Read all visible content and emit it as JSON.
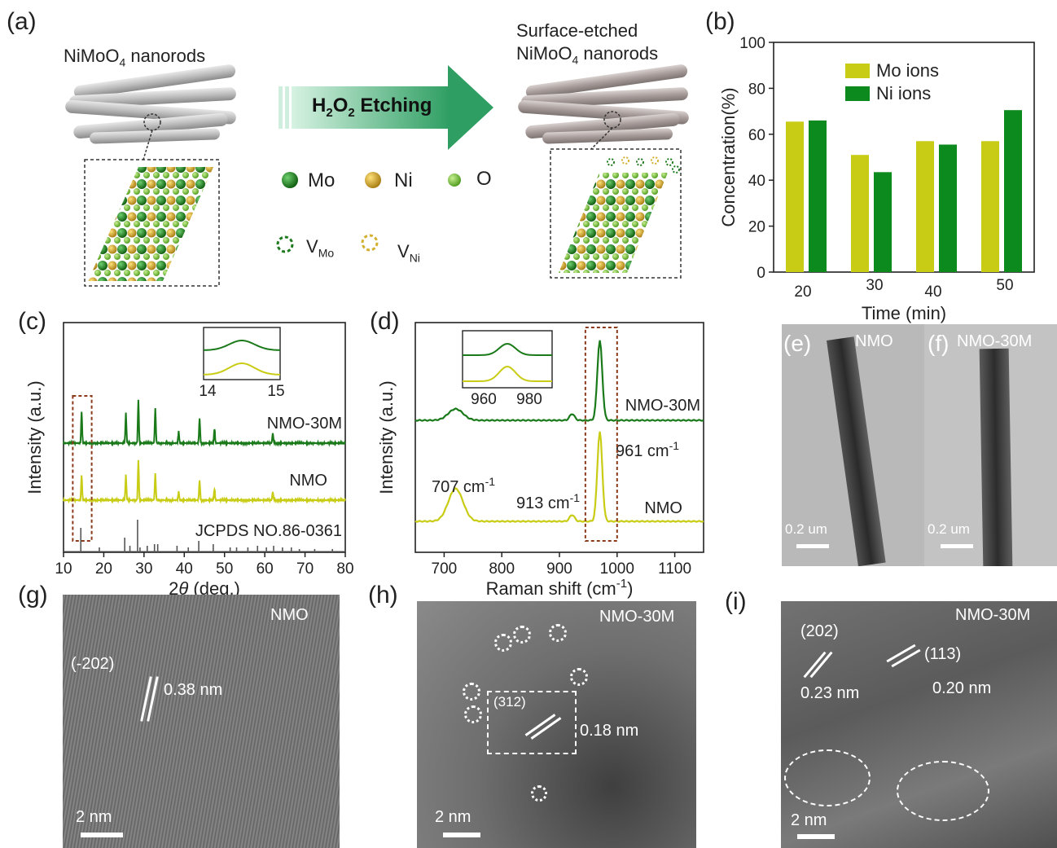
{
  "panels": {
    "a": "(a)",
    "b": "(b)",
    "c": "(c)",
    "d": "(d)",
    "e": "(e)",
    "f": "(f)",
    "g": "(g)",
    "h": "(h)",
    "i": "(i)"
  },
  "schematic": {
    "left_title": "NiMoO",
    "left_sub": "4",
    "left_suffix": " nanorods",
    "right_title_line1": "Surface-etched",
    "right_title_line2": "NiMoO",
    "right_sub": "4",
    "right_suffix": " nanorods",
    "arrow_label_h": "H",
    "arrow_sub1": "2",
    "arrow_o": "O",
    "arrow_sub2": "2",
    "arrow_rest": " Etching",
    "legend_mo": "Mo",
    "legend_ni": "Ni",
    "legend_o": "O",
    "vac_v1": "V",
    "vac_mo": "Mo",
    "vac_v2": "V",
    "vac_ni": "Ni",
    "colors": {
      "mo": "#1f7a1f",
      "ni": "#d4b030",
      "o": "#7fc241",
      "arrow": "#2e9e62"
    }
  },
  "chart_data": [
    {
      "type": "bar",
      "panel": "b",
      "categories": [
        "20",
        "30",
        "40",
        "50"
      ],
      "series": [
        {
          "name": "Mo ions",
          "values": [
            65.5,
            51,
            57,
            57
          ],
          "color": "#c8cc14"
        },
        {
          "name": "Ni ions",
          "values": [
            66,
            43.5,
            55.5,
            70.5
          ],
          "color": "#0d8a1e"
        }
      ],
      "xlabel": "Time (min)",
      "ylabel": "Concentration(%)",
      "ylim": [
        0,
        100
      ],
      "yticks": [
        "0",
        "20",
        "40",
        "60",
        "80",
        "100"
      ],
      "legend": "top-left"
    },
    {
      "type": "line",
      "panel": "c",
      "xlabel": "2θ (deg.)",
      "xlabel_theta": "θ",
      "xlabel_two": "2",
      "xlabel_rest": " (deg.)",
      "ylabel": "Intensity (a.u.)",
      "xlim": [
        10,
        80
      ],
      "xticks": [
        "10",
        "20",
        "30",
        "40",
        "50",
        "60",
        "70",
        "80"
      ],
      "series": [
        {
          "name": "NMO-30M",
          "color": "#1a7a1a",
          "peaks": [
            [
              14.5,
              38
            ],
            [
              25.5,
              36
            ],
            [
              28.6,
              52
            ],
            [
              32.8,
              42
            ],
            [
              43.8,
              30
            ],
            [
              47.5,
              18
            ],
            [
              38.6,
              14
            ],
            [
              62,
              12
            ]
          ]
        },
        {
          "name": "NMO",
          "color": "#c8cc14",
          "peaks": [
            [
              14.5,
              30
            ],
            [
              25.5,
              30
            ],
            [
              28.6,
              48
            ],
            [
              32.8,
              32
            ],
            [
              43.8,
              24
            ],
            [
              47.5,
              14
            ],
            [
              38.6,
              10
            ],
            [
              62,
              10
            ]
          ]
        }
      ],
      "reference": "JCPDS NO.86-0361",
      "ref_lines": [
        14.3,
        18.9,
        25.2,
        26.5,
        28.4,
        29.0,
        30.8,
        32.6,
        33.4,
        38.2,
        41.0,
        43.6,
        47.2,
        51.4,
        53.0,
        55.8,
        58.2,
        60.4,
        62.2,
        64.4,
        66.6,
        68.6,
        72.4,
        76.8
      ],
      "inset": {
        "xticks": [
          "14",
          "15"
        ],
        "xlim": [
          14,
          15
        ]
      }
    },
    {
      "type": "line",
      "panel": "d",
      "xlabel": "Raman shift (cm",
      "xlabel_sup": "-1",
      "xlabel_end": ")",
      "ylabel": "Intensity (a.u.)",
      "xlim": [
        650,
        1150
      ],
      "xticks": [
        "700",
        "800",
        "900",
        "1000",
        "1100"
      ],
      "series": [
        {
          "name": "NMO-30M",
          "color": "#1a7a1a"
        },
        {
          "name": "NMO",
          "color": "#c8cc14"
        }
      ],
      "annotations": [
        {
          "text": "707 cm",
          "sup": "-1"
        },
        {
          "text": "913 cm",
          "sup": "-1"
        },
        {
          "text": "961 cm",
          "sup": "-1"
        }
      ],
      "inset": {
        "xticks": [
          "960",
          "980"
        ]
      }
    }
  ],
  "tem": {
    "e_label": "NMO",
    "f_label": "NMO-30M",
    "e_scale": "0.2 um",
    "f_scale": "0.2 um"
  },
  "hrtem": {
    "g_label": "NMO",
    "g_plane": "(-202)",
    "g_d": "0.38 nm",
    "g_scale": "2 nm",
    "h_label": "NMO-30M",
    "h_plane": "(312)",
    "h_d": "0.18 nm",
    "h_scale": "2 nm",
    "i_label": "NMO-30M",
    "i_plane1": "(202)",
    "i_plane2": "(113)",
    "i_d1": "0.23 nm",
    "i_d2": "0.20 nm",
    "i_scale": "2 nm"
  }
}
